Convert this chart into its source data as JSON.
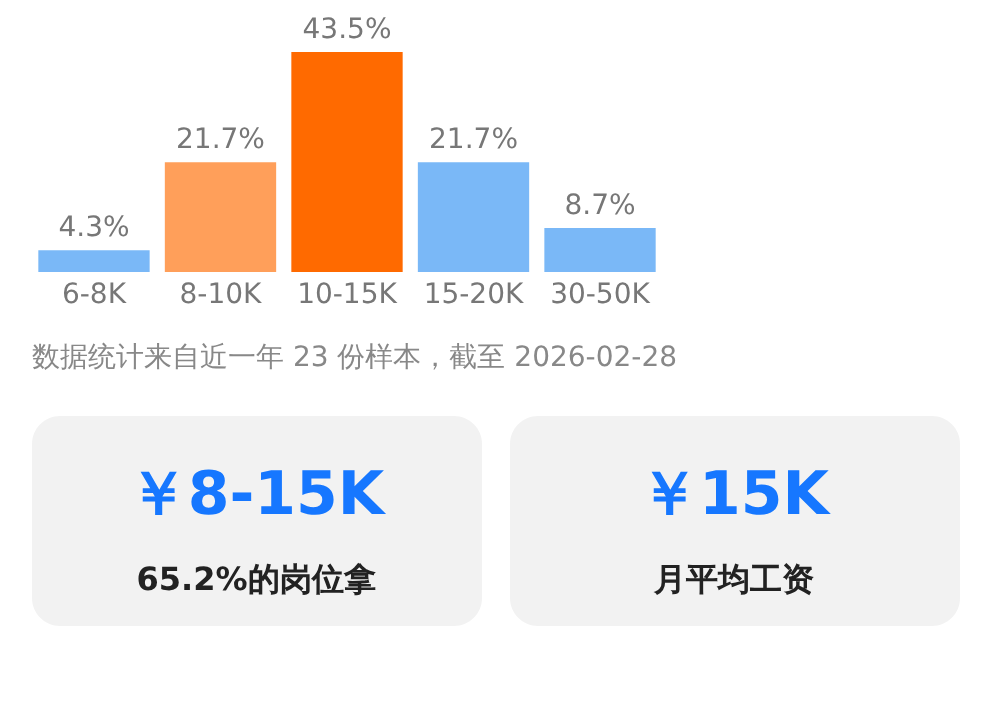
{
  "chart_data": [
    {
      "type": "bar",
      "categories": [
        "6-8K",
        "8-10K",
        "10-15K",
        "15-20K",
        "30-50K"
      ],
      "values": [
        4.3,
        21.7,
        43.5,
        21.7,
        8.7
      ],
      "value_labels": [
        "4.3%",
        "21.7%",
        "43.5%",
        "21.7%",
        "8.7%"
      ],
      "colors": [
        "#7ab8f7",
        "#ff9f5a",
        "#ff6a00",
        "#7ab8f7",
        "#7ab8f7"
      ],
      "tick_labels": "x",
      "annotations": [
        "数据统计来自近一年 23 份样本，截至 2026-02-28"
      ]
    },
    {
      "type": "other",
      "title": "￥8-15K",
      "subtitle": "65.2%的岗位拿"
    },
    {
      "type": "other",
      "title": "￥15K",
      "subtitle": "月平均工资"
    }
  ]
}
